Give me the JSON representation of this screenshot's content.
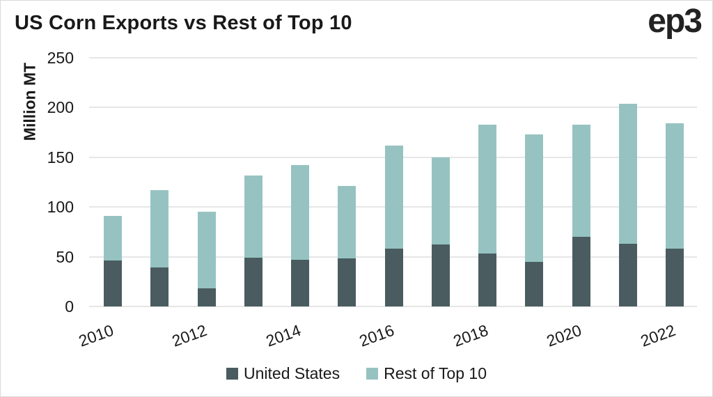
{
  "header": {
    "title": "US Corn Exports vs Rest of Top 10",
    "logo": "ep3"
  },
  "chart_data": {
    "type": "bar",
    "stacked": true,
    "title": "US Corn Exports vs Rest of Top 10",
    "xlabel": "",
    "ylabel": "Million MT",
    "categories": [
      2010,
      2011,
      2012,
      2013,
      2014,
      2015,
      2016,
      2017,
      2018,
      2019,
      2020,
      2021,
      2022
    ],
    "x_tick_labels_shown": [
      "2010",
      "2012",
      "2014",
      "2016",
      "2018",
      "2020",
      "2022"
    ],
    "series": [
      {
        "name": "United States",
        "color": "#4a5c60",
        "values": [
          46,
          39,
          18,
          49,
          47,
          48,
          58,
          62,
          53,
          45,
          70,
          63,
          58
        ]
      },
      {
        "name": "Rest of Top 10",
        "color": "#96c3c1",
        "values": [
          45,
          78,
          77,
          83,
          95,
          73,
          104,
          88,
          130,
          128,
          113,
          141,
          126
        ]
      }
    ],
    "totals": [
      91,
      117,
      95,
      132,
      142,
      121,
      162,
      150,
      183,
      173,
      183,
      204,
      184
    ],
    "ylim": [
      0,
      250
    ],
    "yticks": [
      0,
      50,
      100,
      150,
      200,
      250
    ],
    "grid": true,
    "grid_color": "#e6e6e6",
    "legend_position": "bottom",
    "text_color": "#191919"
  }
}
